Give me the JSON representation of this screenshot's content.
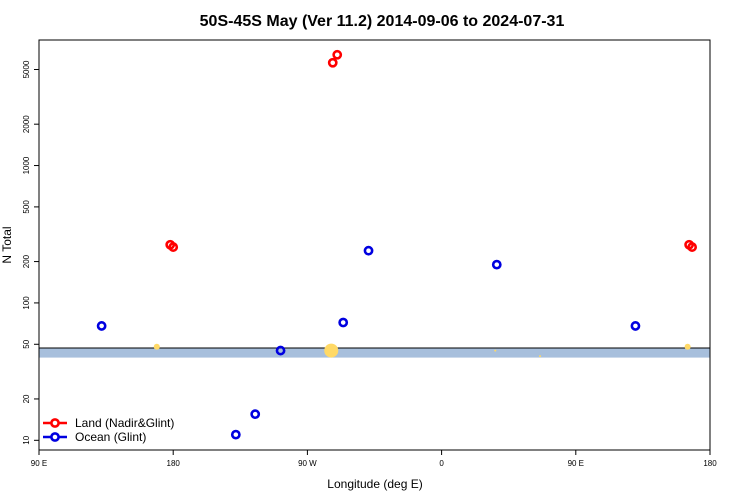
{
  "chart_data": {
    "type": "scatter",
    "title": "50S-45S May (Ver 11.2)   2014-09-06 to 2024-07-31",
    "xlabel": "Longitude (deg E)",
    "ylabel": "N Total",
    "y_scale": "log",
    "x_ticks": [
      {
        "value": 90,
        "label": "90 E"
      },
      {
        "value": 180,
        "label": "180"
      },
      {
        "value": 270,
        "label": "90 W"
      },
      {
        "value": 360,
        "label": "0"
      },
      {
        "value": 450,
        "label": "90 E"
      },
      {
        "value": 540,
        "label": "180"
      }
    ],
    "y_ticks": [
      10,
      20,
      50,
      100,
      200,
      500,
      1000,
      2000,
      5000
    ],
    "xlim": [
      90,
      540
    ],
    "ylim": [
      8.5,
      8200
    ],
    "series": [
      {
        "name": "Land (Nadir&Glint)",
        "color": "#ff0000",
        "points": [
          {
            "x": 178,
            "y": 265
          },
          {
            "x": 180,
            "y": 255
          },
          {
            "x": 287,
            "y": 5600
          },
          {
            "x": 290,
            "y": 6400
          },
          {
            "x": 526,
            "y": 265
          },
          {
            "x": 528,
            "y": 255
          }
        ]
      },
      {
        "name": "Ocean (Glint)",
        "color": "#0000e0",
        "points": [
          {
            "x": 132,
            "y": 68
          },
          {
            "x": 222,
            "y": 11
          },
          {
            "x": 235,
            "y": 15.5
          },
          {
            "x": 252,
            "y": 45
          },
          {
            "x": 294,
            "y": 72
          },
          {
            "x": 311,
            "y": 240
          },
          {
            "x": 397,
            "y": 190
          },
          {
            "x": 490,
            "y": 68
          }
        ]
      }
    ],
    "land_band": {
      "y_low": 40,
      "y_high": 47,
      "color": "#a7bfdc"
    },
    "sun_markers": {
      "color": "#ffd966",
      "points": [
        {
          "x": 169,
          "y": 48,
          "s": 3
        },
        {
          "x": 286,
          "y": 45,
          "s": 7
        },
        {
          "x": 396,
          "y": 45,
          "s": 1
        },
        {
          "x": 426,
          "y": 41,
          "s": 1
        },
        {
          "x": 525,
          "y": 48,
          "s": 3
        }
      ]
    },
    "legend": {
      "position": "bottom-left",
      "entries": [
        "Land (Nadir&Glint)",
        "Ocean (Glint)"
      ]
    }
  }
}
